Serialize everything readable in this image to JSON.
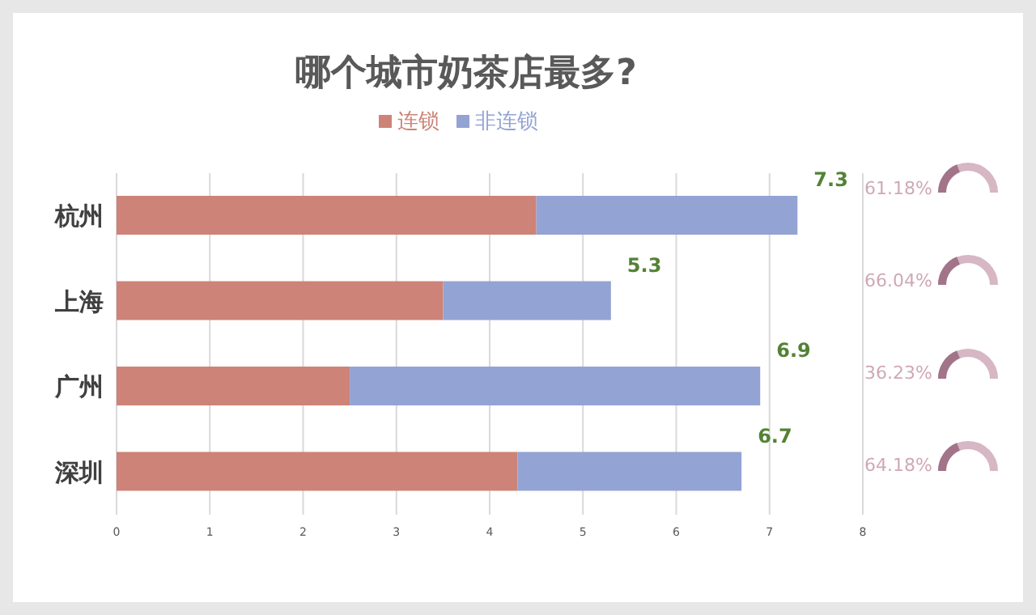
{
  "chart_data": {
    "type": "bar",
    "orientation": "horizontal",
    "stacked": true,
    "title": "哪个城市奶茶店最多?",
    "categories": [
      "杭州",
      "上海",
      "广州",
      "深圳"
    ],
    "series": [
      {
        "name": "连锁",
        "color": "#cd8377",
        "values": [
          4.5,
          3.5,
          2.5,
          4.3
        ]
      },
      {
        "name": "非连锁",
        "color": "#93a3d3",
        "values": [
          2.8,
          1.8,
          4.4,
          2.4
        ]
      }
    ],
    "totals": [
      "7.3",
      "5.3",
      "6.9",
      "6.7"
    ],
    "annotations": [
      "61.18%",
      "66.04%",
      "36.23%",
      "64.18%"
    ],
    "xlim": [
      0,
      8
    ],
    "xticks": [
      0,
      1,
      2,
      3,
      4,
      5,
      6,
      7,
      8
    ],
    "grid": "x",
    "legend": "top"
  }
}
